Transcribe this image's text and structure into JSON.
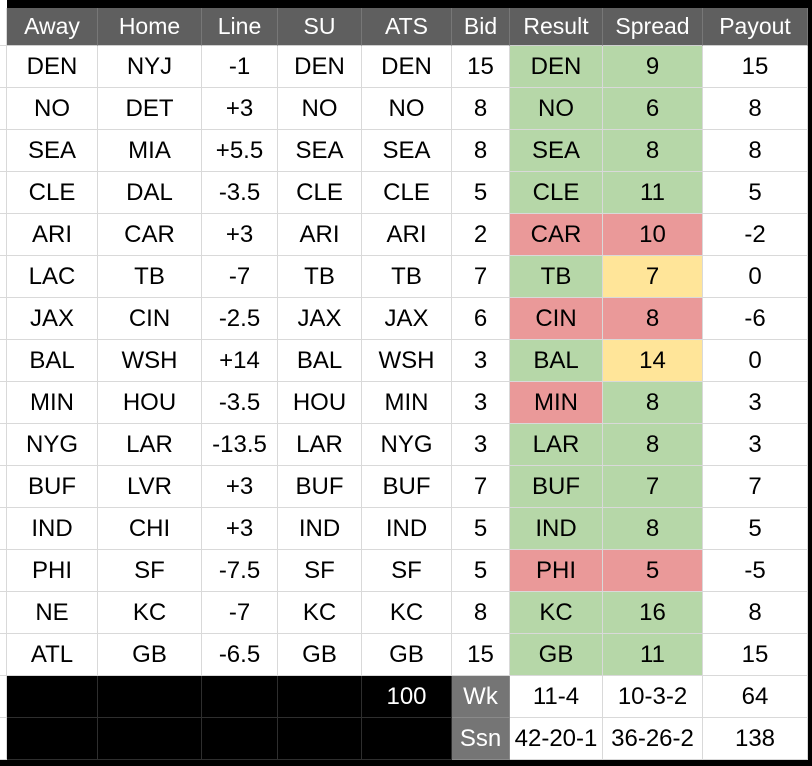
{
  "table": {
    "headers": [
      "Away",
      "Home",
      "Line",
      "SU",
      "ATS",
      "Bid",
      "Result",
      "Spread",
      "Payout"
    ],
    "colors": {
      "win": "#b6d7a8",
      "loss": "#ea9999",
      "push": "#ffe599",
      "header_bg": "#5f5f5f",
      "label_bg": "#757575"
    },
    "rows": [
      {
        "away": "DEN",
        "home": "NYJ",
        "line": "-1",
        "su": "DEN",
        "ats": "DEN",
        "bid": "15",
        "result": "DEN",
        "result_color": "win",
        "spread": "9",
        "spread_color": "win",
        "payout": "15"
      },
      {
        "away": "NO",
        "home": "DET",
        "line": "+3",
        "su": "NO",
        "ats": "NO",
        "bid": "8",
        "result": "NO",
        "result_color": "win",
        "spread": "6",
        "spread_color": "win",
        "payout": "8"
      },
      {
        "away": "SEA",
        "home": "MIA",
        "line": "+5.5",
        "su": "SEA",
        "ats": "SEA",
        "bid": "8",
        "result": "SEA",
        "result_color": "win",
        "spread": "8",
        "spread_color": "win",
        "payout": "8"
      },
      {
        "away": "CLE",
        "home": "DAL",
        "line": "-3.5",
        "su": "CLE",
        "ats": "CLE",
        "bid": "5",
        "result": "CLE",
        "result_color": "win",
        "spread": "11",
        "spread_color": "win",
        "payout": "5"
      },
      {
        "away": "ARI",
        "home": "CAR",
        "line": "+3",
        "su": "ARI",
        "ats": "ARI",
        "bid": "2",
        "result": "CAR",
        "result_color": "loss",
        "spread": "10",
        "spread_color": "loss",
        "payout": "-2"
      },
      {
        "away": "LAC",
        "home": "TB",
        "line": "-7",
        "su": "TB",
        "ats": "TB",
        "bid": "7",
        "result": "TB",
        "result_color": "win",
        "spread": "7",
        "spread_color": "push",
        "payout": "0"
      },
      {
        "away": "JAX",
        "home": "CIN",
        "line": "-2.5",
        "su": "JAX",
        "ats": "JAX",
        "bid": "6",
        "result": "CIN",
        "result_color": "loss",
        "spread": "8",
        "spread_color": "loss",
        "payout": "-6"
      },
      {
        "away": "BAL",
        "home": "WSH",
        "line": "+14",
        "su": "BAL",
        "ats": "WSH",
        "bid": "3",
        "result": "BAL",
        "result_color": "win",
        "spread": "14",
        "spread_color": "push",
        "payout": "0"
      },
      {
        "away": "MIN",
        "home": "HOU",
        "line": "-3.5",
        "su": "HOU",
        "ats": "MIN",
        "bid": "3",
        "result": "MIN",
        "result_color": "loss",
        "spread": "8",
        "spread_color": "win",
        "payout": "3"
      },
      {
        "away": "NYG",
        "home": "LAR",
        "line": "-13.5",
        "su": "LAR",
        "ats": "NYG",
        "bid": "3",
        "result": "LAR",
        "result_color": "win",
        "spread": "8",
        "spread_color": "win",
        "payout": "3"
      },
      {
        "away": "BUF",
        "home": "LVR",
        "line": "+3",
        "su": "BUF",
        "ats": "BUF",
        "bid": "7",
        "result": "BUF",
        "result_color": "win",
        "spread": "7",
        "spread_color": "win",
        "payout": "7"
      },
      {
        "away": "IND",
        "home": "CHI",
        "line": "+3",
        "su": "IND",
        "ats": "IND",
        "bid": "5",
        "result": "IND",
        "result_color": "win",
        "spread": "8",
        "spread_color": "win",
        "payout": "5"
      },
      {
        "away": "PHI",
        "home": "SF",
        "line": "-7.5",
        "su": "SF",
        "ats": "SF",
        "bid": "5",
        "result": "PHI",
        "result_color": "loss",
        "spread": "5",
        "spread_color": "loss",
        "payout": "-5"
      },
      {
        "away": "NE",
        "home": "KC",
        "line": "-7",
        "su": "KC",
        "ats": "KC",
        "bid": "8",
        "result": "KC",
        "result_color": "win",
        "spread": "16",
        "spread_color": "win",
        "payout": "8"
      },
      {
        "away": "ATL",
        "home": "GB",
        "line": "-6.5",
        "su": "GB",
        "ats": "GB",
        "bid": "15",
        "result": "GB",
        "result_color": "win",
        "spread": "11",
        "spread_color": "win",
        "payout": "15"
      }
    ],
    "summary": {
      "bid_total": "100",
      "week": {
        "label": "Wk",
        "result": "11-4",
        "spread": "10-3-2",
        "payout": "64"
      },
      "season": {
        "label": "Ssn",
        "result": "42-20-1",
        "spread": "36-26-2",
        "payout": "138"
      }
    }
  }
}
